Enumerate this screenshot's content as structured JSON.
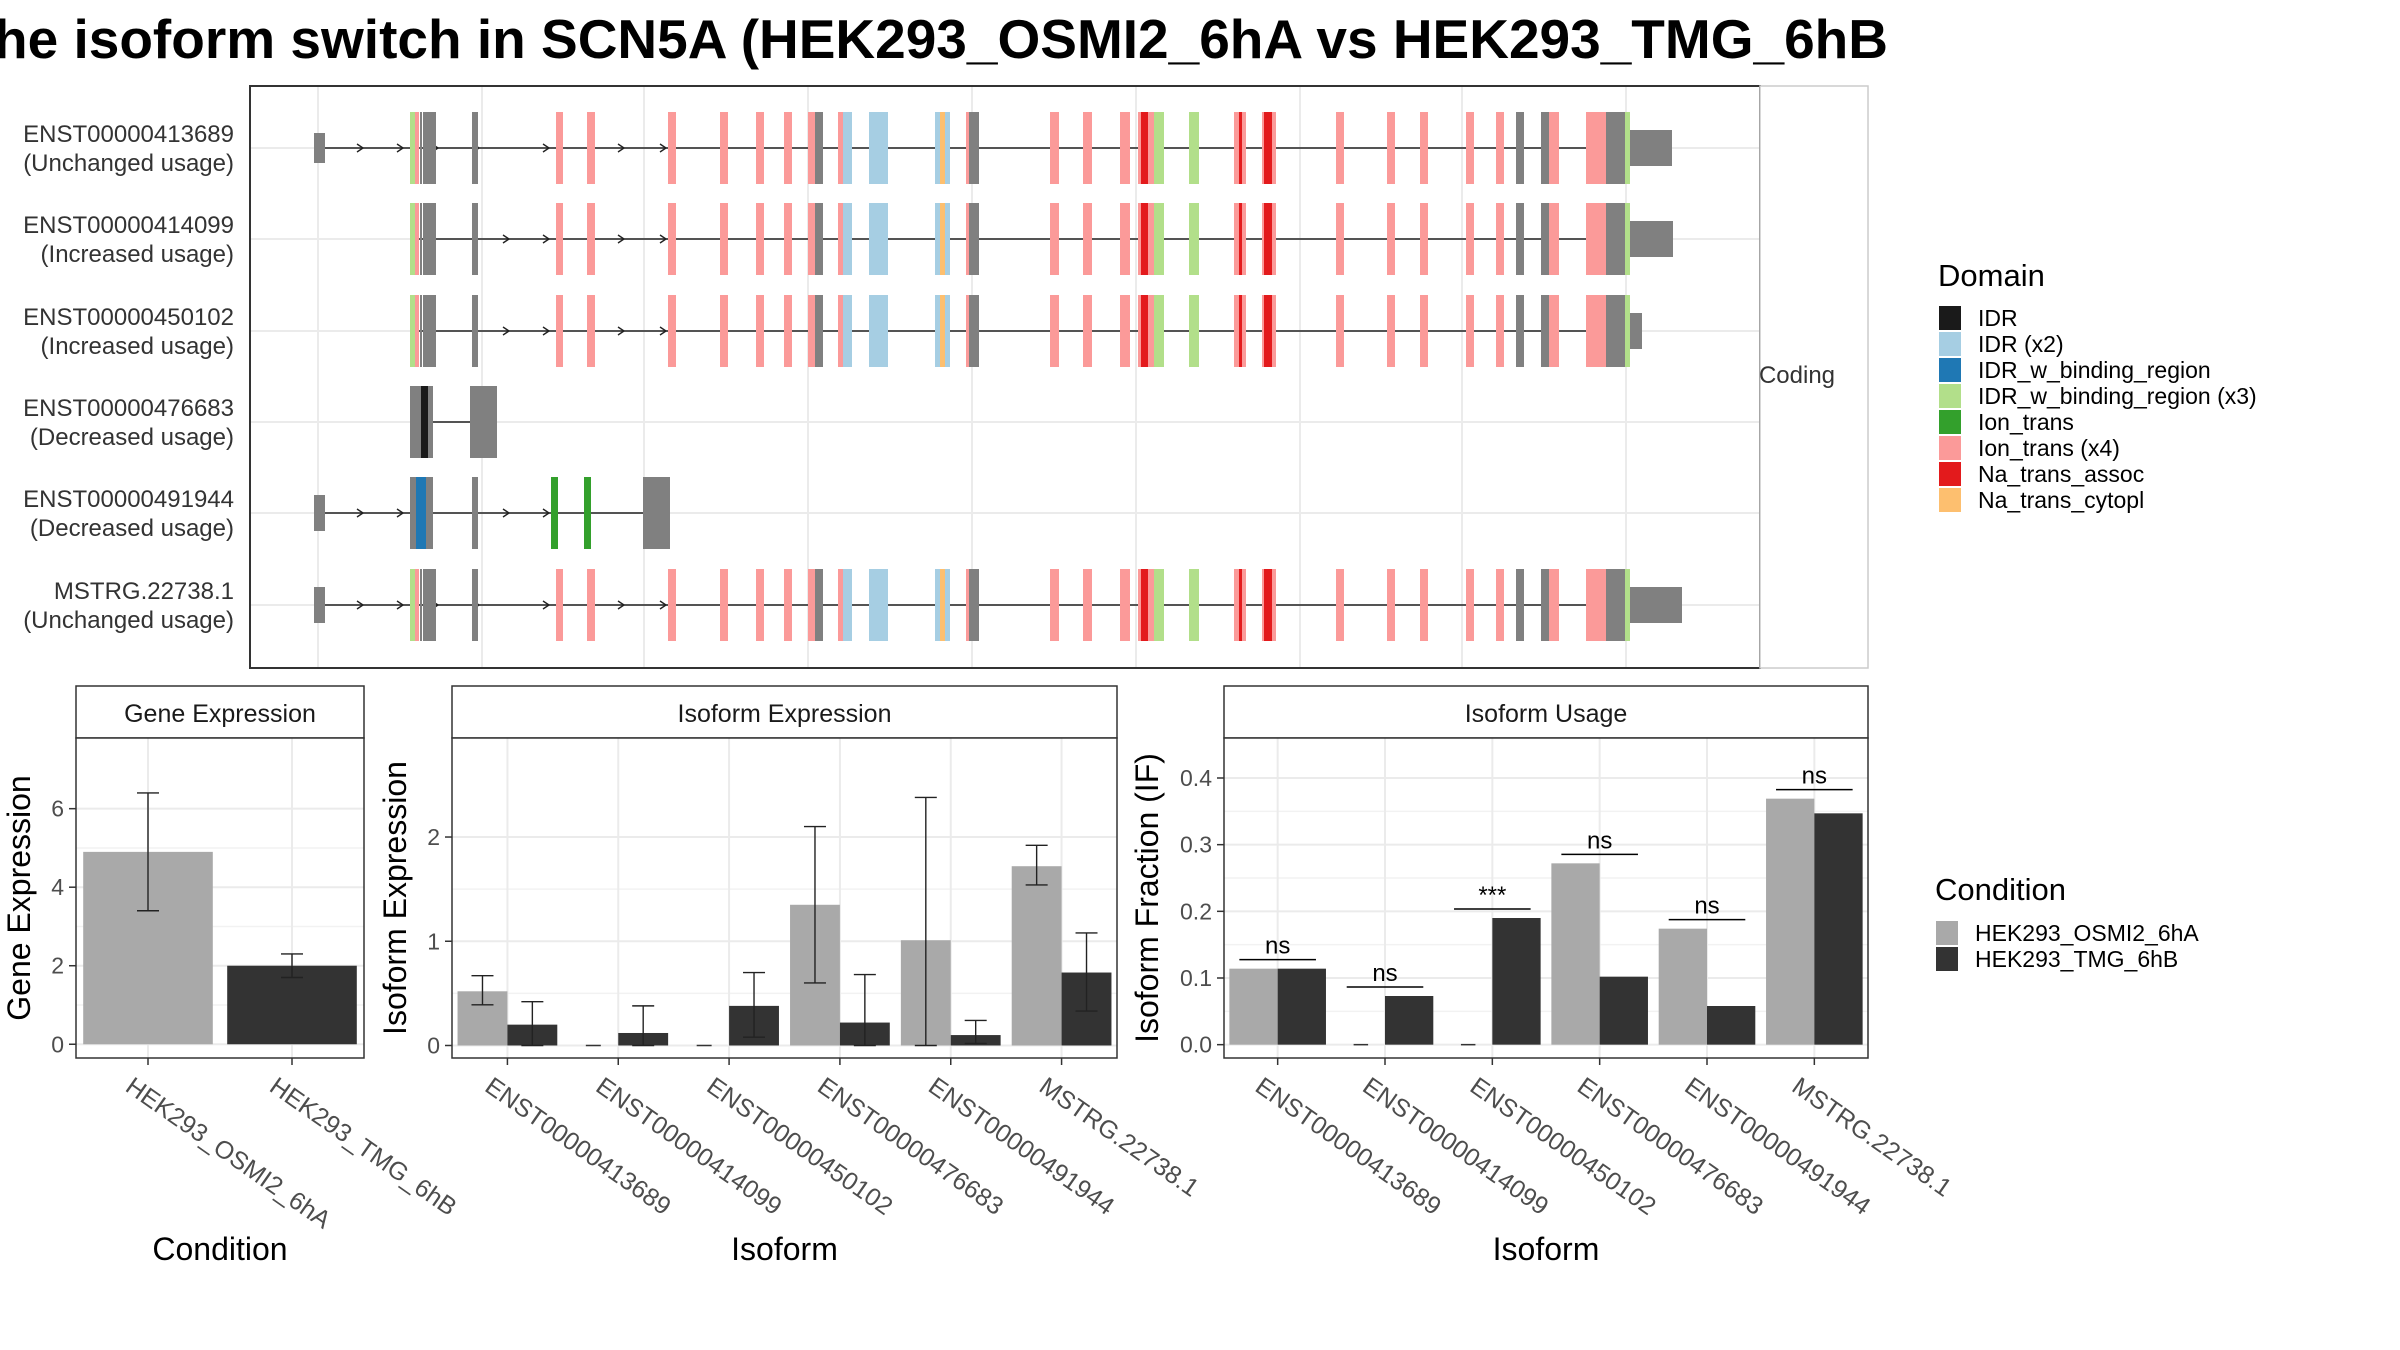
{
  "title": "he isoform switch in SCN5A (HEK293_OSMI2_6hA vs HEK293_TMG_6hB",
  "structure_strip": "Coding",
  "colors": {
    "IDR": "#1a1a1a",
    "IDR (x2)": "#a6cee3",
    "IDR_w_binding_region": "#1f78b4",
    "IDR_w_binding_region (x3)": "#b2df8a",
    "Ion_trans": "#33a02c",
    "Ion_trans (x4)": "#fb9a99",
    "Na_trans_assoc": "#e31a1c",
    "Na_trans_cytopl": "#fdbf6f",
    "exon": "#808080",
    "condition_a": "#a9a9a9",
    "condition_b": "#333333"
  },
  "transcripts": [
    {
      "id": "ENST00000413689",
      "usage": "(Unchanged usage)"
    },
    {
      "id": "ENST00000414099",
      "usage": "(Increased usage)"
    },
    {
      "id": "ENST00000450102",
      "usage": "(Increased usage)"
    },
    {
      "id": "ENST00000476683",
      "usage": "(Decreased usage)"
    },
    {
      "id": "ENST00000491944",
      "usage": "(Decreased usage)"
    },
    {
      "id": "MSTRG.22738.1",
      "usage": "(Unchanged usage)"
    }
  ],
  "domain_legend": {
    "title": "Domain",
    "items": [
      "IDR",
      "IDR (x2)",
      "IDR_w_binding_region",
      "IDR_w_binding_region (x3)",
      "Ion_trans",
      "Ion_trans (x4)",
      "Na_trans_assoc",
      "Na_trans_cytopl"
    ]
  },
  "condition_legend": {
    "title": "Condition",
    "items": [
      "HEK293_OSMI2_6hA",
      "HEK293_TMG_6hB"
    ]
  },
  "chart_data": [
    {
      "type": "bar",
      "title": "Gene Expression",
      "xlabel": "Condition",
      "ylabel": "Gene Expression",
      "categories": [
        "HEK293_OSMI2_6hA",
        "HEK293_TMG_6hB"
      ],
      "values": [
        4.9,
        2.0
      ],
      "error_low": [
        3.4,
        1.7
      ],
      "error_high": [
        6.4,
        2.3
      ],
      "ylim": [
        -0.35,
        7.8
      ],
      "yticks": [
        0,
        2,
        4,
        6
      ]
    },
    {
      "type": "bar",
      "title": "Isoform Expression",
      "xlabel": "Isoform",
      "ylabel": "Isoform Expression",
      "categories": [
        "ENST00000413689",
        "ENST00000414099",
        "ENST00000450102",
        "ENST00000476683",
        "ENST00000491944",
        "MSTRG.22738.1"
      ],
      "series": [
        {
          "name": "HEK293_OSMI2_6hA",
          "values": [
            0.52,
            0.0,
            0.0,
            1.35,
            1.01,
            1.72
          ],
          "error_low": [
            0.39,
            null,
            null,
            0.6,
            0.0,
            1.54
          ],
          "error_high": [
            0.67,
            null,
            null,
            2.1,
            2.38,
            1.92
          ]
        },
        {
          "name": "HEK293_TMG_6hB",
          "values": [
            0.2,
            0.12,
            0.38,
            0.22,
            0.1,
            0.7
          ],
          "error_low": [
            0.0,
            0.0,
            0.08,
            0.0,
            0.02,
            0.33
          ],
          "error_high": [
            0.42,
            0.38,
            0.7,
            0.68,
            0.24,
            1.08
          ]
        }
      ],
      "ylim": [
        -0.12,
        2.95
      ],
      "yticks": [
        0,
        1,
        2
      ]
    },
    {
      "type": "bar",
      "title": "Isoform Usage",
      "xlabel": "Isoform",
      "ylabel": "Isoform Fraction (IF)",
      "categories": [
        "ENST00000413689",
        "ENST00000414099",
        "ENST00000450102",
        "ENST00000476683",
        "ENST00000491944",
        "MSTRG.22738.1"
      ],
      "series": [
        {
          "name": "HEK293_OSMI2_6hA",
          "values": [
            0.114,
            0.0,
            0.0,
            0.272,
            0.174,
            0.369
          ]
        },
        {
          "name": "HEK293_TMG_6hB",
          "values": [
            0.114,
            0.073,
            0.19,
            0.102,
            0.058,
            0.347
          ]
        }
      ],
      "significance": [
        "ns",
        "ns",
        "***",
        "ns",
        "ns",
        "ns"
      ],
      "ylim": [
        -0.02,
        0.46
      ],
      "yticks": [
        "0.0",
        "0.1",
        "0.2",
        "0.3",
        "0.4"
      ]
    }
  ]
}
